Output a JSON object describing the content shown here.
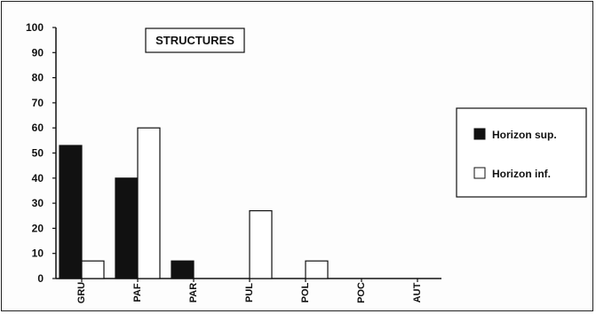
{
  "chart_data": {
    "type": "bar",
    "title": "STRUCTURES",
    "categories": [
      "GRU",
      "PAF",
      "PAR",
      "PUL",
      "POL",
      "POC",
      "AUT"
    ],
    "series": [
      {
        "name": "Horizon sup.",
        "values": [
          53,
          40,
          7,
          0,
          0,
          0,
          0
        ],
        "color": "#111111"
      },
      {
        "name": "Horizon inf.",
        "values": [
          7,
          60,
          0,
          27,
          7,
          0,
          0
        ],
        "color": "#ffffff"
      }
    ],
    "y_ticks": [
      "0",
      "10",
      "20",
      "30",
      "40",
      "50",
      "60",
      "70",
      "80",
      "90",
      "100"
    ],
    "ylim": [
      0,
      100
    ],
    "grid": false,
    "legend_position": "right"
  }
}
